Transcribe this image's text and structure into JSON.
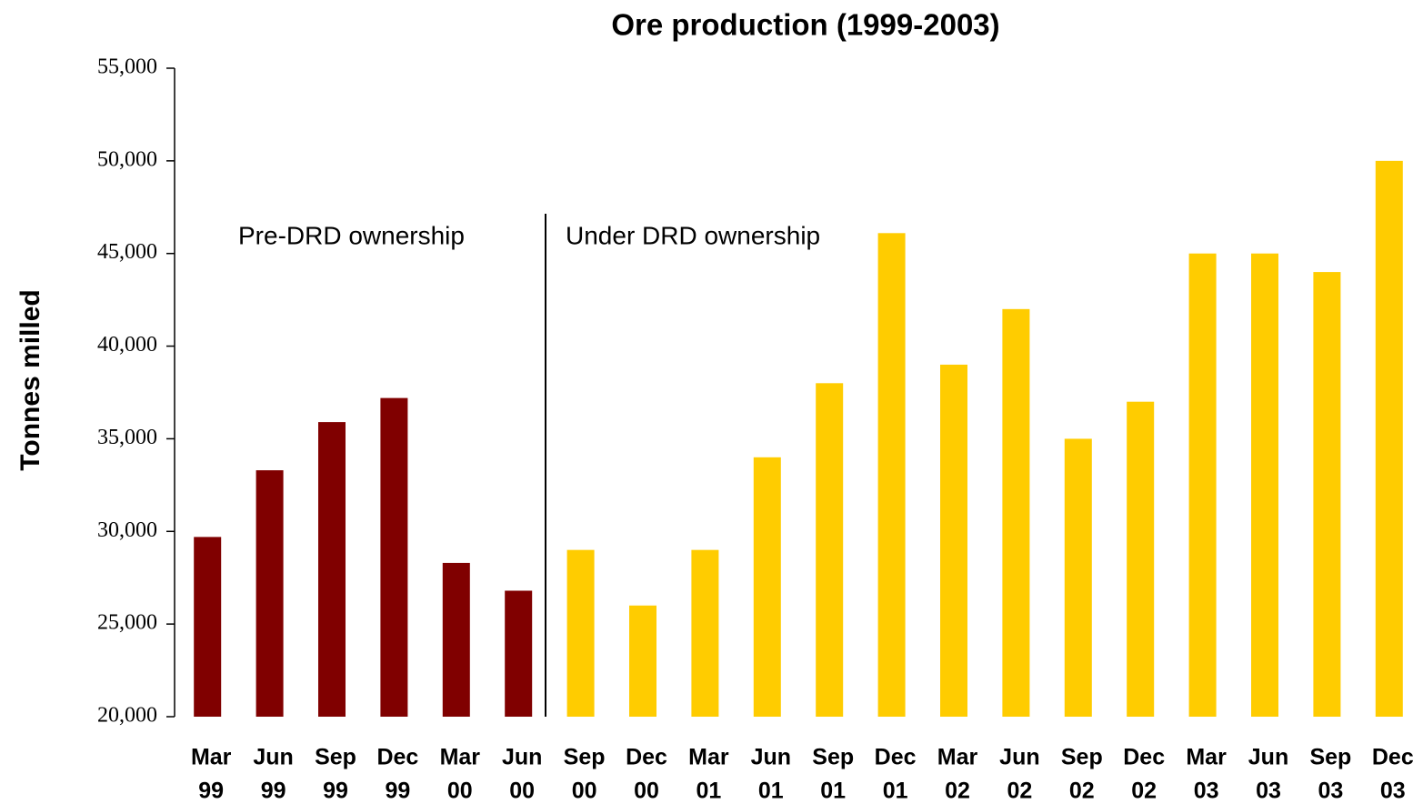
{
  "chart_data": {
    "type": "bar",
    "title": "Ore production (1999-2003)",
    "y_label": "Tonnes milled",
    "annotations": [
      "Pre-DRD ownership",
      "Under DRD ownership"
    ],
    "categories": [
      [
        "Mar",
        "99"
      ],
      [
        "Jun",
        "99"
      ],
      [
        "Sep",
        "99"
      ],
      [
        "Dec",
        "99"
      ],
      [
        "Mar",
        "00"
      ],
      [
        "Jun",
        "00"
      ],
      [
        "Sep",
        "00"
      ],
      [
        "Dec",
        "00"
      ],
      [
        "Mar",
        "01"
      ],
      [
        "Jun",
        "01"
      ],
      [
        "Sep",
        "01"
      ],
      [
        "Dec",
        "01"
      ],
      [
        "Mar",
        "02"
      ],
      [
        "Jun",
        "02"
      ],
      [
        "Sep",
        "02"
      ],
      [
        "Dec",
        "02"
      ],
      [
        "Mar",
        "03"
      ],
      [
        "Jun",
        "03"
      ],
      [
        "Sep",
        "03"
      ],
      [
        "Dec",
        "03"
      ]
    ],
    "values": [
      29700,
      33300,
      35900,
      37200,
      28300,
      26800,
      29000,
      26000,
      29000,
      34000,
      38000,
      46100,
      39000,
      42000,
      35000,
      37000,
      45000,
      45000,
      44000,
      50000
    ],
    "colors": [
      "#800000",
      "#800000",
      "#800000",
      "#800000",
      "#800000",
      "#800000",
      "#ffcc00",
      "#ffcc00",
      "#ffcc00",
      "#ffcc00",
      "#ffcc00",
      "#ffcc00",
      "#ffcc00",
      "#ffcc00",
      "#ffcc00",
      "#ffcc00",
      "#ffcc00",
      "#ffcc00",
      "#ffcc00",
      "#ffcc00"
    ],
    "ylim": [
      20000,
      55000
    ],
    "yticks": [
      {
        "value": 20000,
        "label": "20,000"
      },
      {
        "value": 25000,
        "label": "25,000"
      },
      {
        "value": 30000,
        "label": "30,000"
      },
      {
        "value": 35000,
        "label": "35,000"
      },
      {
        "value": 40000,
        "label": "40,000"
      },
      {
        "value": 45000,
        "label": "45,000"
      },
      {
        "value": 50000,
        "label": "50,000"
      },
      {
        "value": 55000,
        "label": "55,000"
      }
    ],
    "grid": false
  }
}
